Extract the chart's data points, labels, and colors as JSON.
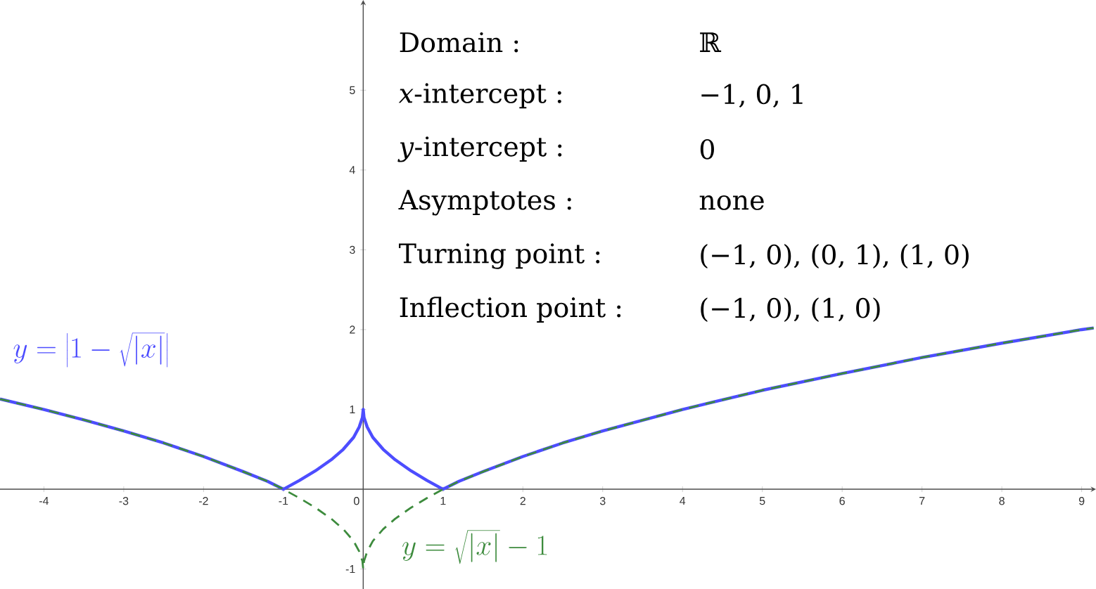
{
  "chart_data": {
    "type": "line",
    "x": [
      -4.55,
      -4,
      -3.5,
      -3,
      -2.5,
      -2,
      -1.5,
      -1.2,
      -1,
      -0.8,
      -0.6,
      -0.4,
      -0.25,
      -0.12,
      -0.05,
      -0.01,
      0,
      0.01,
      0.05,
      0.12,
      0.25,
      0.4,
      0.6,
      0.8,
      1,
      1.2,
      1.5,
      2,
      2.5,
      3,
      4,
      5,
      6,
      7,
      8,
      9,
      9.15
    ],
    "series": [
      {
        "name": "y=\\left|1-\\sqrt{|x|}\\right|",
        "color": "#4d4dff",
        "line_style": "solid",
        "values": [
          1.13,
          1,
          0.87,
          0.73,
          0.58,
          0.41,
          0.22,
          0.1,
          0,
          0.11,
          0.23,
          0.37,
          0.5,
          0.65,
          0.78,
          0.9,
          1,
          0.9,
          0.78,
          0.65,
          0.5,
          0.37,
          0.23,
          0.11,
          0,
          0.1,
          0.22,
          0.41,
          0.58,
          0.73,
          1,
          1.24,
          1.45,
          1.65,
          1.83,
          2,
          2.02
        ]
      },
      {
        "name": "y=\\sqrt{|x|}-1",
        "color": "#3d8b3d",
        "line_style": "dashed",
        "values": [
          1.13,
          1,
          0.87,
          0.73,
          0.58,
          0.41,
          0.22,
          0.1,
          0,
          -0.11,
          -0.23,
          -0.37,
          -0.5,
          -0.65,
          -0.78,
          -0.9,
          -1,
          -0.9,
          -0.78,
          -0.65,
          -0.5,
          -0.37,
          -0.23,
          -0.11,
          0,
          0.1,
          0.22,
          0.41,
          0.58,
          0.73,
          1,
          1.24,
          1.45,
          1.65,
          1.83,
          2,
          2.02
        ]
      }
    ],
    "xlim": [
      -4.55,
      9.18
    ],
    "ylim": [
      -1.25,
      6.13
    ],
    "xticks": [
      -4,
      -3,
      -2,
      -1,
      0,
      1,
      2,
      3,
      4,
      5,
      6,
      7,
      8,
      9
    ],
    "yticks": [
      -1,
      1,
      2,
      3,
      4,
      5
    ],
    "grid": false,
    "marker": "none",
    "annotations": [
      "Domain :",
      "ℝ",
      "*x*-intercept :",
      "−1, 0, 1",
      "*y*-intercept :",
      "0",
      "Asymptotes :",
      "none",
      "Turning point :",
      "(−1, 0), (0, 1), (1, 0)",
      "Inflection point :",
      "(−1, 0), (1, 0)"
    ]
  }
}
